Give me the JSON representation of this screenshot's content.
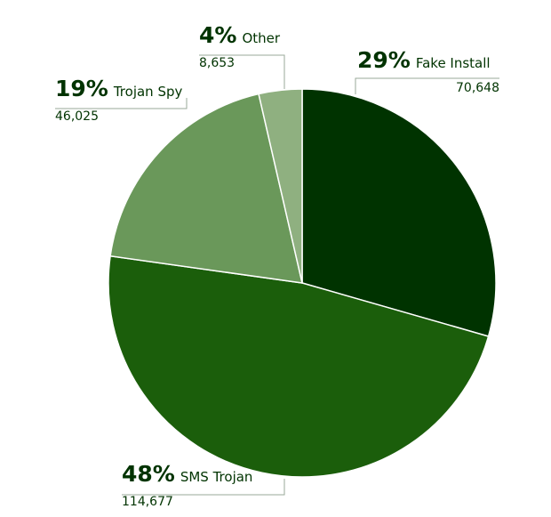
{
  "chart_data": {
    "type": "pie",
    "categories": [
      "Fake Install",
      "SMS Trojan",
      "Trojan Spy",
      "Other"
    ],
    "values": [
      70648,
      114677,
      46025,
      8653
    ],
    "value_labels": [
      "70,648",
      "114,677",
      "46,025",
      "8,653"
    ],
    "shares": [
      29,
      48,
      19,
      4
    ],
    "share_labels": [
      "29%",
      "48%",
      "19%",
      "4%"
    ],
    "colors": [
      "#003300",
      "#1b5e0b",
      "#6a985a",
      "#8fb080"
    ]
  }
}
